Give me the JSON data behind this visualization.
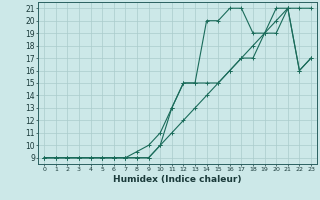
{
  "xlabel": "Humidex (Indice chaleur)",
  "bg_color": "#cce8e8",
  "line_color": "#1a6b5a",
  "grid_color": "#aacccc",
  "xlim": [
    -0.5,
    23.5
  ],
  "ylim": [
    8.5,
    21.5
  ],
  "xticks": [
    0,
    1,
    2,
    3,
    4,
    5,
    6,
    7,
    8,
    9,
    10,
    11,
    12,
    13,
    14,
    15,
    16,
    17,
    18,
    19,
    20,
    21,
    22,
    23
  ],
  "yticks": [
    9,
    10,
    11,
    12,
    13,
    14,
    15,
    16,
    17,
    18,
    19,
    20,
    21
  ],
  "line1_x": [
    0,
    1,
    2,
    3,
    4,
    5,
    6,
    7,
    8,
    9,
    10,
    11,
    12,
    13,
    14,
    15,
    16,
    17,
    18,
    19,
    20,
    21,
    22,
    23
  ],
  "line1_y": [
    9,
    9,
    9,
    9,
    9,
    9,
    9,
    9,
    9,
    9,
    10,
    11,
    12,
    13,
    14,
    15,
    16,
    17,
    18,
    19,
    20,
    21,
    21,
    21
  ],
  "line2_x": [
    0,
    1,
    2,
    3,
    4,
    5,
    6,
    7,
    8,
    9,
    10,
    11,
    12,
    13,
    14,
    15,
    16,
    17,
    18,
    19,
    20,
    21,
    22,
    23
  ],
  "line2_y": [
    9,
    9,
    9,
    9,
    9,
    9,
    9,
    9,
    9,
    9,
    10,
    13,
    15,
    15,
    20,
    20,
    21,
    21,
    19,
    19,
    21,
    21,
    16,
    17
  ],
  "line3_x": [
    0,
    1,
    2,
    3,
    4,
    5,
    6,
    7,
    8,
    9,
    10,
    11,
    12,
    13,
    14,
    15,
    16,
    17,
    18,
    19,
    20,
    21,
    22,
    23
  ],
  "line3_y": [
    9,
    9,
    9,
    9,
    9,
    9,
    9,
    9,
    9.5,
    10,
    11,
    13,
    15,
    15,
    15,
    15,
    16,
    17,
    17,
    19,
    19,
    21,
    16,
    17
  ]
}
